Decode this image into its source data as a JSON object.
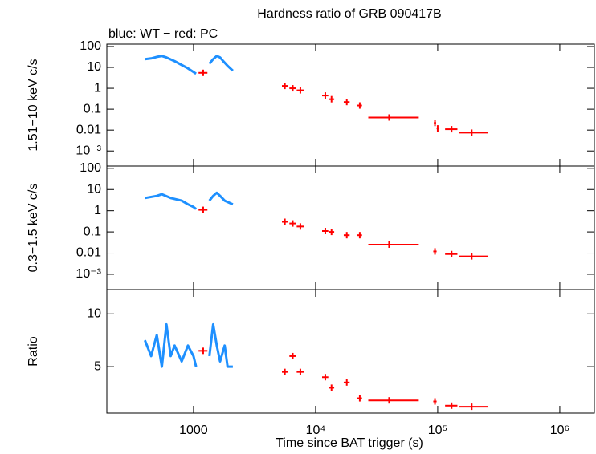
{
  "chart_data": [
    {
      "type": "line",
      "title": "Hardness ratio of GRB 090417B",
      "subtitle": "blue: WT − red: PC",
      "ylabel": "1.51−10 keV c/s",
      "log_y": true,
      "ylim": [
        0.00019,
        130
      ],
      "yticks": [
        100,
        10,
        1,
        0.1,
        0.01,
        {
          "value": 0.001,
          "label": "10⁻³"
        }
      ],
      "series": [
        {
          "color": "#1e90ff",
          "x": [
            400,
            450,
            500,
            550,
            600,
            700,
            800,
            900,
            1000,
            1050,
            1200,
            1350,
            1450,
            1550,
            1650,
            1750,
            1900,
            2000,
            2100
          ],
          "values": [
            25,
            27,
            32,
            35,
            30,
            20,
            13,
            9,
            6,
            5,
            null,
            15,
            25,
            35,
            30,
            20,
            12,
            9,
            7
          ]
        },
        {
          "color": "#ff0000",
          "x": [
            1200,
            5600,
            6500,
            7500,
            12000,
            13500,
            18000,
            23000,
            40000,
            95000,
            100000,
            130000,
            190000
          ],
          "x_lo": [
            1100,
            5300,
            6100,
            7000,
            11300,
            12800,
            17000,
            22000,
            27000,
            93000,
            98000,
            115000,
            150000
          ],
          "x_hi": [
            1300,
            5900,
            6900,
            8000,
            12700,
            14200,
            19000,
            24000,
            70000,
            97000,
            102000,
            145000,
            260000
          ],
          "values": [
            5.5,
            1.3,
            1.0,
            0.8,
            0.45,
            0.3,
            0.22,
            0.15,
            0.04,
            0.022,
            0.012,
            0.011,
            0.0075
          ]
        }
      ]
    },
    {
      "type": "line",
      "ylabel": "0.3−1.5 keV c/s",
      "log_y": true,
      "ylim": [
        0.00019,
        128
      ],
      "yticks": [
        100,
        10,
        1,
        0.1,
        0.01,
        {
          "value": 0.001,
          "label": "10⁻³"
        }
      ],
      "series": [
        {
          "color": "#1e90ff",
          "x": [
            400,
            500,
            550,
            650,
            800,
            900,
            1000,
            1050,
            1200,
            1350,
            1450,
            1550,
            1650,
            1800,
            2100
          ],
          "values": [
            4,
            5,
            6,
            4,
            3,
            2,
            1.5,
            1.2,
            null,
            3,
            5,
            7,
            5,
            3,
            2
          ]
        },
        {
          "color": "#ff0000",
          "x": [
            1200,
            5600,
            6500,
            7500,
            12000,
            13500,
            18000,
            23000,
            40000,
            95000,
            130000,
            190000
          ],
          "x_lo": [
            1100,
            5300,
            6100,
            7000,
            11300,
            12800,
            17000,
            22000,
            27000,
            92000,
            115000,
            150000
          ],
          "x_hi": [
            1300,
            5900,
            6900,
            8000,
            12700,
            14200,
            19000,
            24000,
            70000,
            98000,
            145000,
            260000
          ],
          "values": [
            1.1,
            0.3,
            0.25,
            0.18,
            0.11,
            0.1,
            0.07,
            0.07,
            0.025,
            0.012,
            0.009,
            0.007
          ]
        }
      ]
    },
    {
      "type": "line",
      "ylabel": "Ratio",
      "xlabel": "Time since BAT trigger (s)",
      "log_x": true,
      "xlim": [
        195,
        1920000
      ],
      "xticks": [
        1000,
        {
          "value": 10000,
          "label": "10⁴"
        },
        {
          "value": 100000,
          "label": "10⁵"
        },
        {
          "value": 1000000,
          "label": "10⁶"
        }
      ],
      "log_y": false,
      "ylim": [
        0.6,
        12.3
      ],
      "yticks": [
        5,
        10
      ],
      "series": [
        {
          "color": "#1e90ff",
          "x": [
            400,
            450,
            500,
            550,
            600,
            650,
            700,
            800,
            900,
            1000,
            1050,
            1200,
            1350,
            1450,
            1550,
            1650,
            1800,
            1900,
            2100
          ],
          "values": [
            7.5,
            6,
            8,
            5,
            9,
            6,
            7,
            5.5,
            7,
            6,
            5,
            null,
            6,
            9,
            7,
            5.5,
            7,
            5,
            5
          ]
        },
        {
          "color": "#ff0000",
          "x": [
            1200,
            5600,
            6500,
            7500,
            12000,
            13500,
            18000,
            23000,
            40000,
            95000,
            130000,
            190000
          ],
          "x_lo": [
            1100,
            5300,
            6100,
            7000,
            11300,
            12800,
            17000,
            22000,
            27000,
            92000,
            115000,
            150000
          ],
          "x_hi": [
            1300,
            5900,
            6900,
            8000,
            12700,
            14200,
            19000,
            24000,
            70000,
            98000,
            145000,
            260000
          ],
          "values": [
            6.5,
            4.5,
            6,
            4.5,
            4,
            3,
            3.5,
            2,
            1.8,
            1.7,
            1.3,
            1.2
          ]
        }
      ]
    }
  ]
}
